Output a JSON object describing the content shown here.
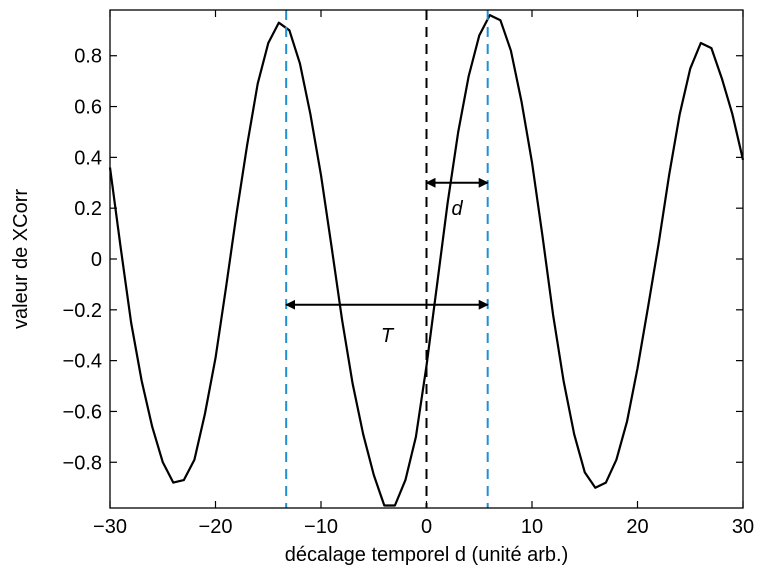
{
  "chart_data": {
    "type": "line",
    "title": "",
    "xlabel": "décalage temporel d (unité arb.)",
    "ylabel": "valeur de XCorr",
    "xlim": [
      -30,
      30
    ],
    "ylim": [
      -0.98,
      0.98
    ],
    "grid": false,
    "x_ticks": [
      -30,
      -20,
      -10,
      0,
      10,
      20,
      30
    ],
    "x_tick_labels": [
      "−30",
      "−20",
      "−10",
      "0",
      "10",
      "20",
      "30"
    ],
    "y_ticks": [
      -0.8,
      -0.6,
      -0.4,
      -0.2,
      0,
      0.2,
      0.4,
      0.6,
      0.8
    ],
    "y_tick_labels": [
      "−0.8",
      "−0.6",
      "−0.4",
      "−0.2",
      "0",
      "0.2",
      "0.4",
      "0.6",
      "0.8"
    ],
    "series": [
      {
        "color": "#000000",
        "x": [
          -30,
          -29,
          -28,
          -27,
          -26,
          -25,
          -24,
          -23,
          -22,
          -21,
          -20,
          -19,
          -18,
          -17,
          -16,
          -15,
          -14,
          -13,
          -12,
          -11,
          -10,
          -9,
          -8,
          -7,
          -6,
          -5,
          -4,
          -3,
          -2,
          -1,
          0,
          1,
          2,
          3,
          4,
          5,
          6,
          7,
          8,
          9,
          10,
          11,
          12,
          13,
          14,
          15,
          16,
          17,
          18,
          19,
          20,
          21,
          22,
          23,
          24,
          25,
          26,
          27,
          28,
          29,
          30
        ],
        "y": [
          0.36,
          0.05,
          -0.25,
          -0.48,
          -0.66,
          -0.8,
          -0.88,
          -0.87,
          -0.79,
          -0.61,
          -0.39,
          -0.11,
          0.18,
          0.45,
          0.69,
          0.85,
          0.93,
          0.9,
          0.77,
          0.57,
          0.33,
          0.05,
          -0.24,
          -0.49,
          -0.69,
          -0.85,
          -0.97,
          -0.97,
          -0.87,
          -0.7,
          -0.42,
          -0.1,
          0.22,
          0.5,
          0.72,
          0.88,
          0.96,
          0.94,
          0.82,
          0.62,
          0.38,
          0.09,
          -0.22,
          -0.48,
          -0.69,
          -0.84,
          -0.9,
          -0.88,
          -0.79,
          -0.64,
          -0.43,
          -0.19,
          0.06,
          0.33,
          0.57,
          0.75,
          0.85,
          0.83,
          0.71,
          0.57,
          0.39
        ]
      }
    ],
    "reference_lines": [
      {
        "name": "center",
        "x": 0,
        "style": "dashed",
        "color": "#000000"
      },
      {
        "name": "peak-left",
        "x": -13.3,
        "style": "dashed",
        "color": "#1f8fd0"
      },
      {
        "name": "peak-right",
        "x": 5.8,
        "style": "dashed",
        "color": "#1f8fd0"
      }
    ],
    "annotations": [
      {
        "label": "d",
        "type": "double-arrow",
        "x_start": 0,
        "x_end": 5.8,
        "y": 0.3,
        "label_y": 0.2
      },
      {
        "label": "T",
        "type": "double-arrow",
        "x_start": -13.3,
        "x_end": 5.8,
        "y": -0.18,
        "label_y": -0.3
      }
    ]
  }
}
